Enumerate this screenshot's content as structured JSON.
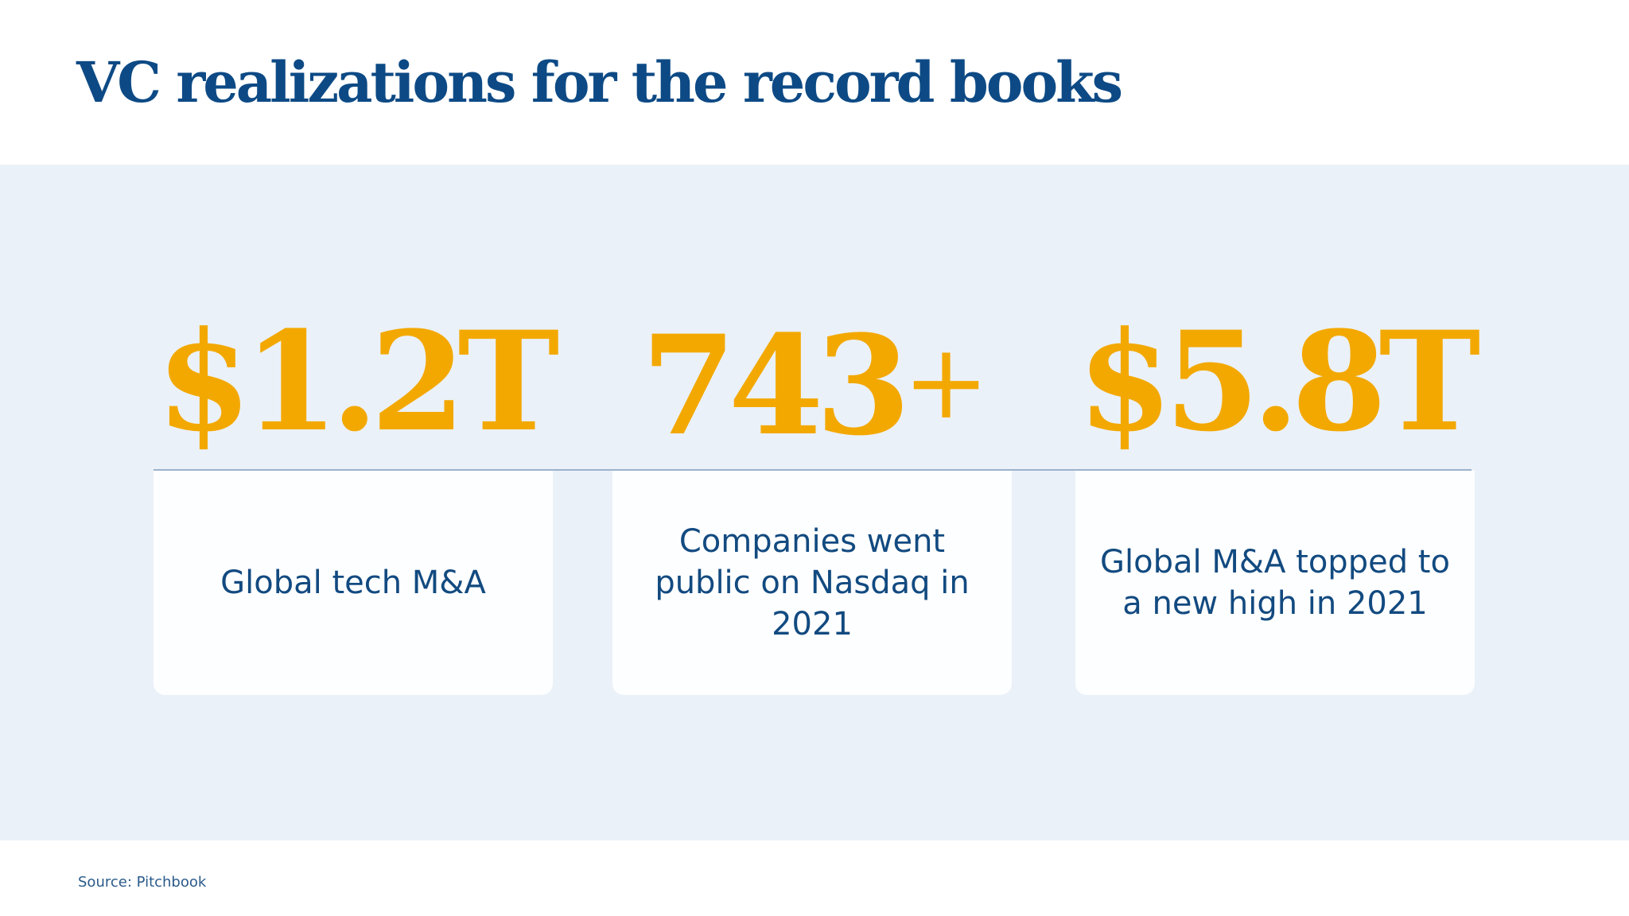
{
  "slide": {
    "title": "VC realizations for the record books",
    "source": "Source: Pitchbook"
  },
  "stats": [
    {
      "value": "$1.2T",
      "suffix": "",
      "description": "Global tech M&A"
    },
    {
      "value": "743",
      "suffix": "+",
      "description": "Companies went public on Nasdaq in 2021"
    },
    {
      "value": "$5.8T",
      "suffix": "",
      "description": "Global M&A topped to a new high in 2021"
    }
  ],
  "colors": {
    "title": "#0d4a85",
    "accent": "#f3a800",
    "panel_background": "#ebf1f8",
    "card_background": "#fdfeff",
    "body_text": "#124a80"
  }
}
